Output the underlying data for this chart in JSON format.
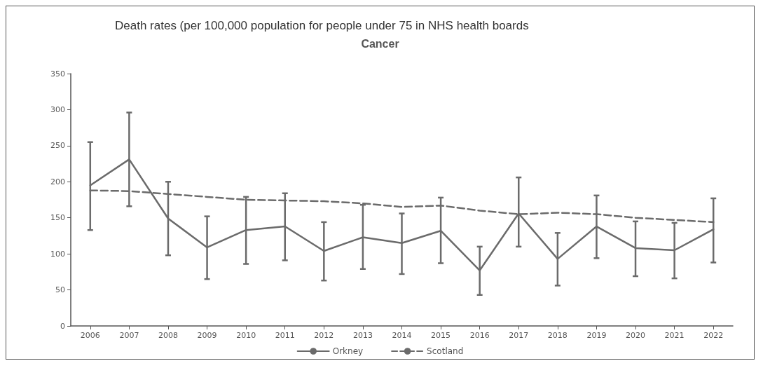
{
  "chart_data": {
    "type": "line",
    "title": "Death rates (per 100,000 population for people under 75 in NHS health boards",
    "subtitle": "Cancer",
    "categories": [
      "2006",
      "2007",
      "2008",
      "2009",
      "2010",
      "2011",
      "2012",
      "2013",
      "2014",
      "2015",
      "2016",
      "2017",
      "2018",
      "2019",
      "2020",
      "2021",
      "2022"
    ],
    "series": [
      {
        "name": "Orkney",
        "color": "#6b6b6b",
        "line_style": "solid",
        "values": [
          195,
          231,
          149,
          109,
          133,
          138,
          104,
          123,
          115,
          132,
          77,
          156,
          93,
          138,
          108,
          105,
          134
        ],
        "errors": [
          [
            133,
            255
          ],
          [
            166,
            296
          ],
          [
            98,
            200
          ],
          [
            65,
            152
          ],
          [
            86,
            179
          ],
          [
            91,
            184
          ],
          [
            63,
            144
          ],
          [
            79,
            168
          ],
          [
            72,
            156
          ],
          [
            87,
            178
          ],
          [
            43,
            110
          ],
          [
            110,
            206
          ],
          [
            56,
            129
          ],
          [
            94,
            181
          ],
          [
            69,
            145
          ],
          [
            66,
            143
          ],
          [
            88,
            177
          ]
        ]
      },
      {
        "name": "Scotland",
        "color": "#6b6b6b",
        "line_style": "dashed",
        "values": [
          188,
          187,
          183,
          179,
          175,
          174,
          173,
          170,
          165,
          167,
          160,
          155,
          157,
          155,
          150,
          147,
          144
        ]
      }
    ],
    "ylim": [
      0,
      350
    ],
    "yticks": [
      0,
      50,
      100,
      150,
      200,
      250,
      300,
      350
    ],
    "grid": false,
    "legend": "bottom",
    "marker": "none"
  }
}
